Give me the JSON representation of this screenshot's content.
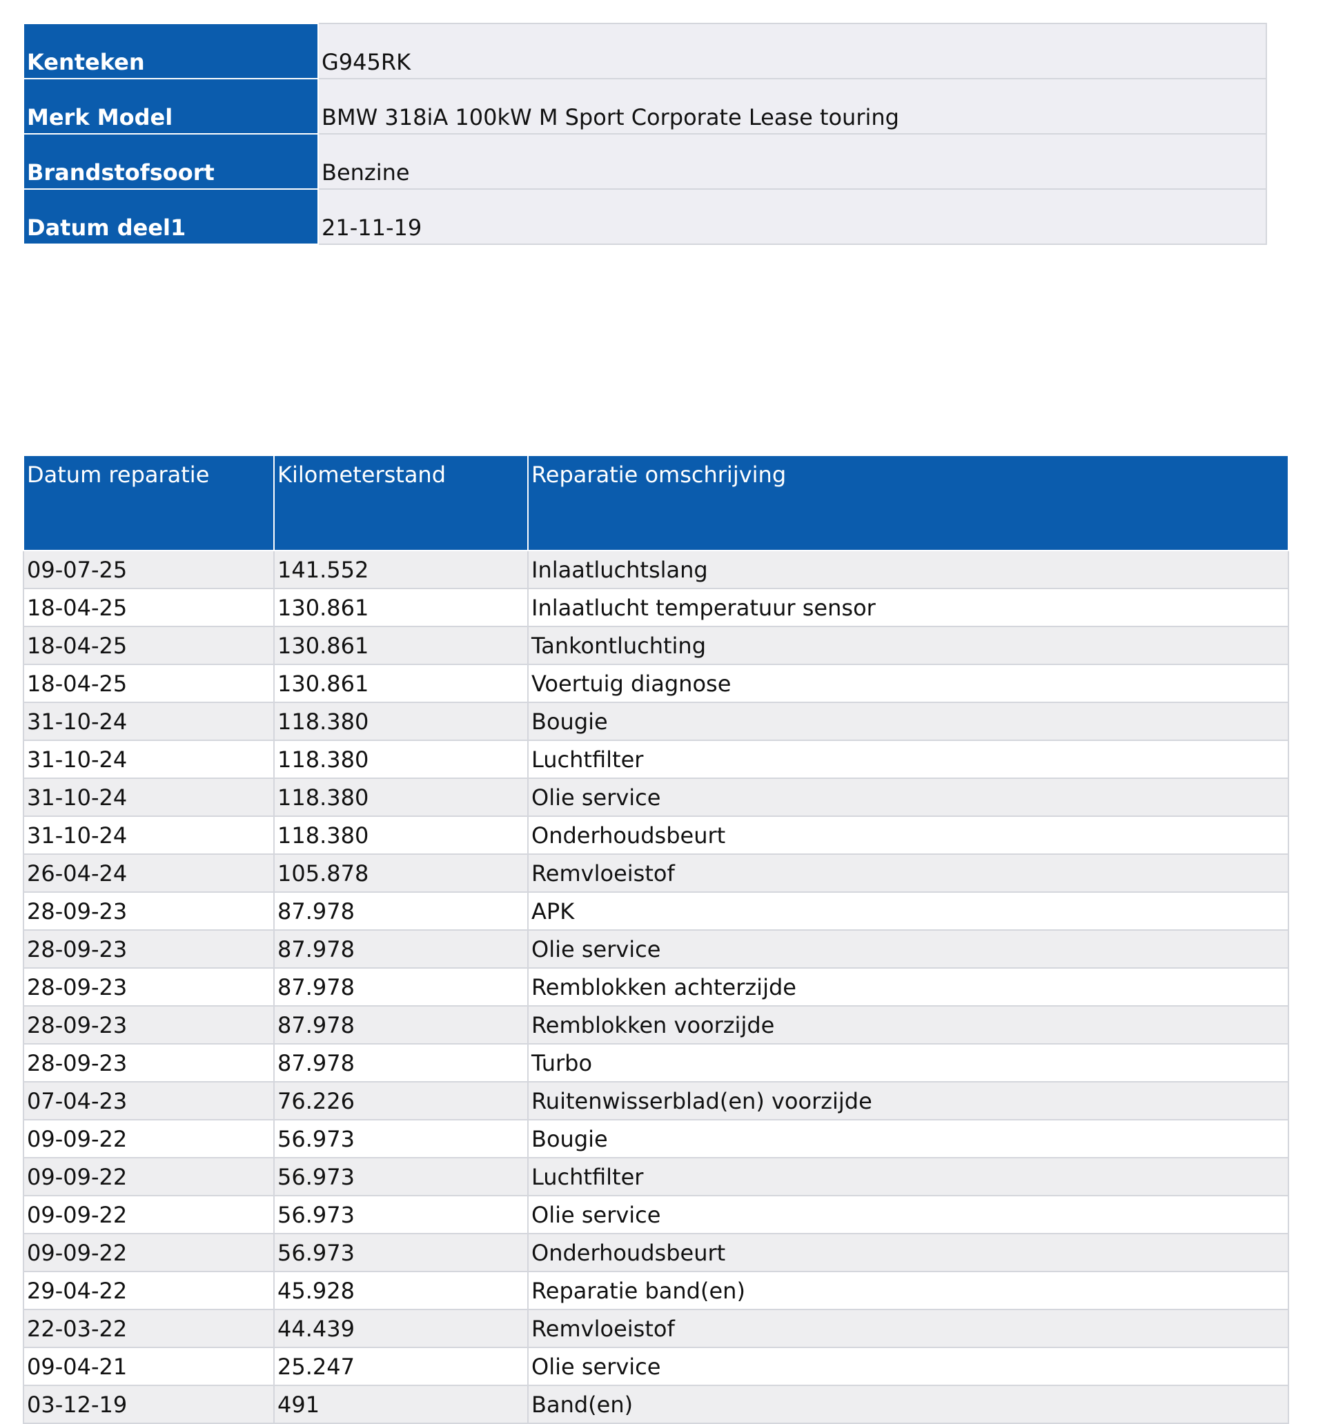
{
  "vehicle": {
    "rows": [
      {
        "label": "Kenteken",
        "value": "G945RK"
      },
      {
        "label": "Merk Model",
        "value": "BMW 318iA 100kW M Sport Corporate Lease touring"
      },
      {
        "label": "Brandstofsoort",
        "value": "Benzine"
      },
      {
        "label": "Datum deel1",
        "value": "21-11-19"
      }
    ]
  },
  "repairs": {
    "header": [
      "Datum reparatie",
      "Kilometerstand",
      "Reparatie omschrijving"
    ],
    "rows": [
      [
        "09-07-25",
        "141.552",
        "Inlaatluchtslang"
      ],
      [
        "18-04-25",
        "130.861",
        "Inlaatlucht temperatuur sensor"
      ],
      [
        "18-04-25",
        "130.861",
        "Tankontluchting"
      ],
      [
        "18-04-25",
        "130.861",
        "Voertuig diagnose"
      ],
      [
        "31-10-24",
        "118.380",
        "Bougie"
      ],
      [
        "31-10-24",
        "118.380",
        "Luchtfilter"
      ],
      [
        "31-10-24",
        "118.380",
        "Olie service"
      ],
      [
        "31-10-24",
        "118.380",
        "Onderhoudsbeurt"
      ],
      [
        "26-04-24",
        "105.878",
        "Remvloeistof"
      ],
      [
        "28-09-23",
        "87.978",
        "APK"
      ],
      [
        "28-09-23",
        "87.978",
        "Olie service"
      ],
      [
        "28-09-23",
        "87.978",
        "Remblokken achterzijde"
      ],
      [
        "28-09-23",
        "87.978",
        "Remblokken voorzijde"
      ],
      [
        "28-09-23",
        "87.978",
        "Turbo"
      ],
      [
        "07-04-23",
        "76.226",
        "Ruitenwisserblad(en) voorzijde"
      ],
      [
        "09-09-22",
        "56.973",
        "Bougie"
      ],
      [
        "09-09-22",
        "56.973",
        "Luchtfilter"
      ],
      [
        "09-09-22",
        "56.973",
        "Olie service"
      ],
      [
        "09-09-22",
        "56.973",
        "Onderhoudsbeurt"
      ],
      [
        "29-04-22",
        "45.928",
        "Reparatie band(en)"
      ],
      [
        "22-03-22",
        "44.439",
        "Remvloeistof"
      ],
      [
        "09-04-21",
        "25.247",
        "Olie service"
      ],
      [
        "03-12-19",
        "491",
        "Band(en)"
      ]
    ]
  }
}
